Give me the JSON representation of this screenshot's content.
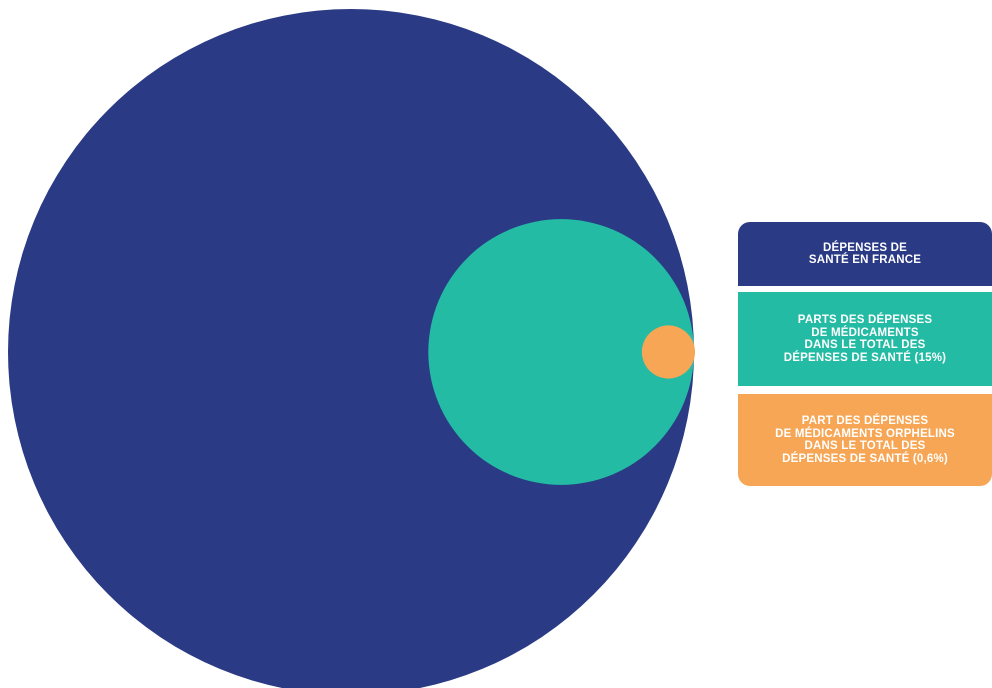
{
  "chart_data": {
    "type": "bubble",
    "series": [
      {
        "name": "DÉPENSES DE\nSANTÉ EN FRANCE",
        "value": 100,
        "color": "#2a3a84"
      },
      {
        "name": "PARTS DES DÉPENSES\nDE MÉDICAMENTS\nDANS LE TOTAL DES\nDÉPENSES DE SANTÉ (15%)",
        "value": 15,
        "color": "#24bba4"
      },
      {
        "name": "PART DES DÉPENSES\nDE MÉDICAMENTS ORPHELINS\nDANS LE TOTAL DES\nDÉPENSES DE SANTÉ (0,6%)",
        "value": 0.6,
        "color": "#f6a654"
      }
    ],
    "legend_position": "right"
  }
}
